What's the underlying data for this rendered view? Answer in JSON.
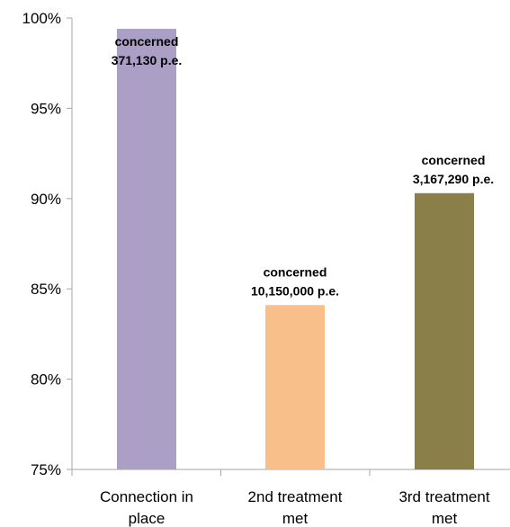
{
  "chart_data": {
    "type": "bar",
    "categories": [
      [
        "Connection in",
        "place"
      ],
      [
        "2nd treatment",
        "met"
      ],
      [
        "3rd treatment",
        "met"
      ]
    ],
    "values": [
      99.4,
      84.1,
      90.3
    ],
    "unit": "%",
    "ylim": [
      75,
      100
    ],
    "yticks": [
      75,
      80,
      85,
      90,
      95,
      100
    ],
    "ytick_labels": [
      "75%",
      "80%",
      "85%",
      "90%",
      "95%",
      "100%"
    ],
    "grid": false,
    "legend": "none",
    "colors": [
      "#ac9fc6",
      "#f9bf8a",
      "#8a7f48"
    ],
    "data_labels": [
      [
        "concerned",
        "371,130 p.e."
      ],
      [
        "concerned",
        "10,150,000 p.e."
      ],
      [
        "concerned",
        "3,167,290 p.e."
      ]
    ]
  }
}
